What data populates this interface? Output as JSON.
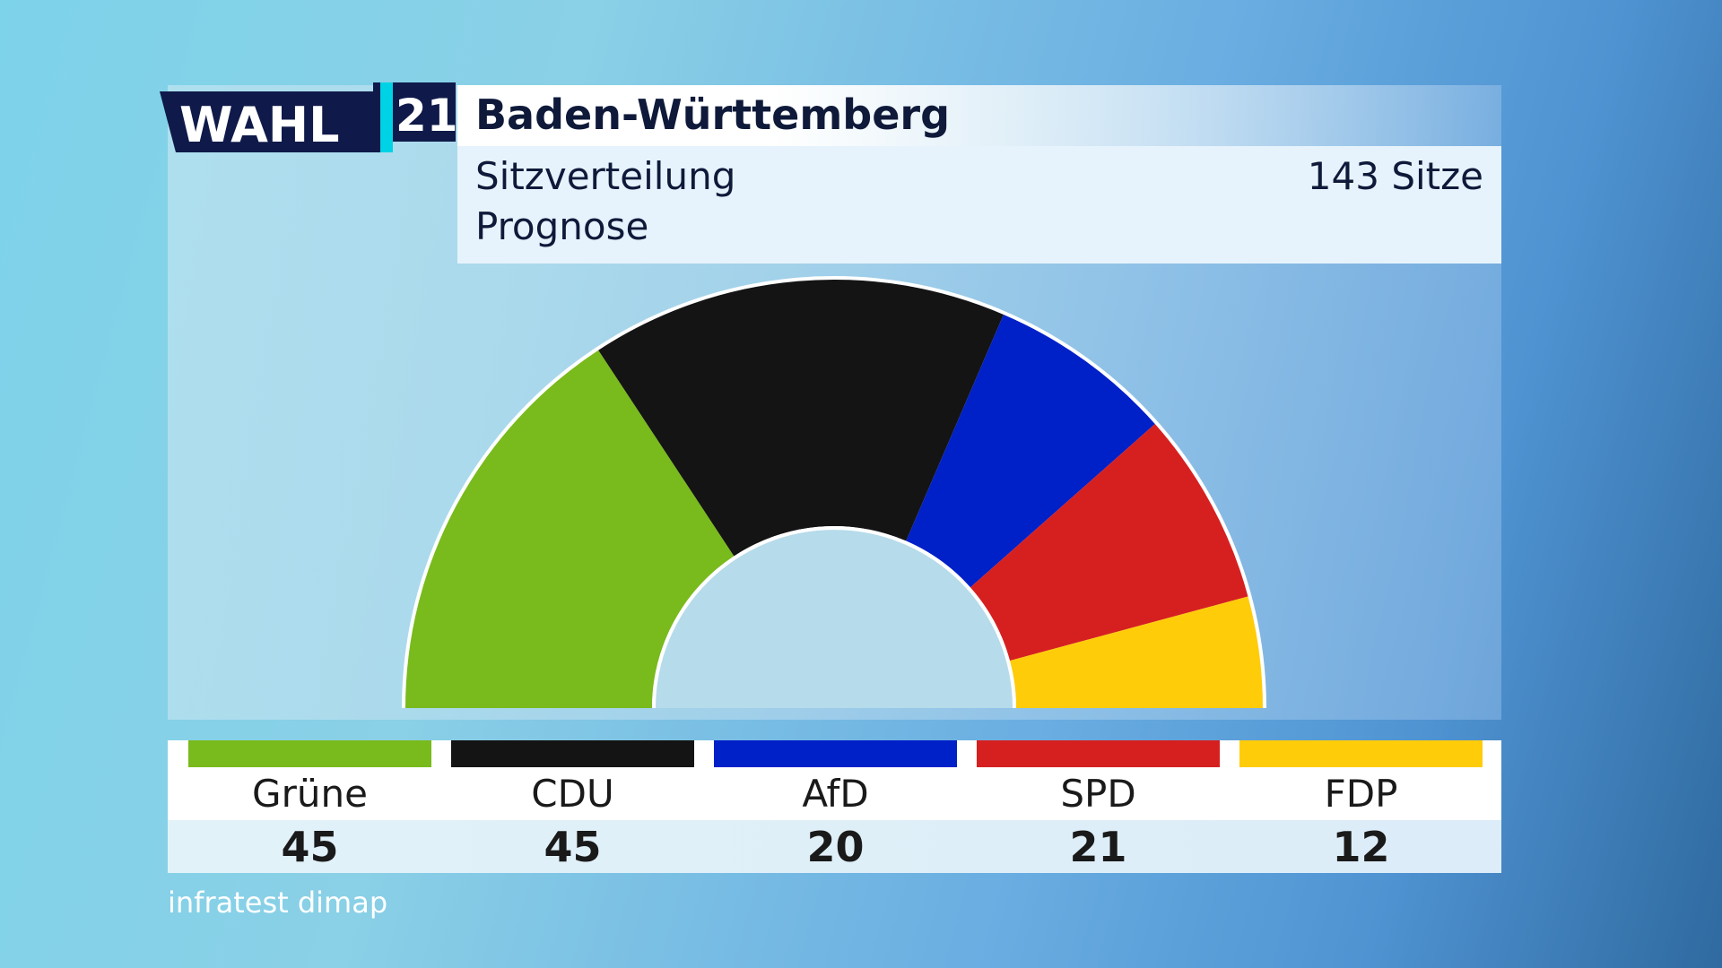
{
  "logo": {
    "word": "WAHL",
    "year": "21"
  },
  "header": {
    "title": "Baden-Württemberg",
    "subtitle_line1": "Sitzverteilung",
    "subtitle_line2": "Prognose",
    "total_seats_label": "143 Sitze"
  },
  "source": "infratest dimap",
  "colors": {
    "gruene": "#79ba1c",
    "cdu": "#141414",
    "afd": "#0020c8",
    "spd": "#d62020",
    "fdp": "#ffcc0a"
  },
  "chart_data": {
    "type": "pie",
    "variant": "parliament-semicircle",
    "total": 143,
    "series": [
      {
        "name": "Grüne",
        "value": 45,
        "color": "#79ba1c"
      },
      {
        "name": "CDU",
        "value": 45,
        "color": "#141414"
      },
      {
        "name": "AfD",
        "value": 20,
        "color": "#0020c8"
      },
      {
        "name": "SPD",
        "value": 21,
        "color": "#d62020"
      },
      {
        "name": "FDP",
        "value": 12,
        "color": "#ffcc0a"
      }
    ]
  },
  "legend": [
    {
      "name": "Grüne",
      "seats": "45",
      "color": "#79ba1c"
    },
    {
      "name": "CDU",
      "seats": "45",
      "color": "#141414"
    },
    {
      "name": "AfD",
      "seats": "20",
      "color": "#0020c8"
    },
    {
      "name": "SPD",
      "seats": "21",
      "color": "#d62020"
    },
    {
      "name": "FDP",
      "seats": "12",
      "color": "#ffcc0a"
    }
  ]
}
